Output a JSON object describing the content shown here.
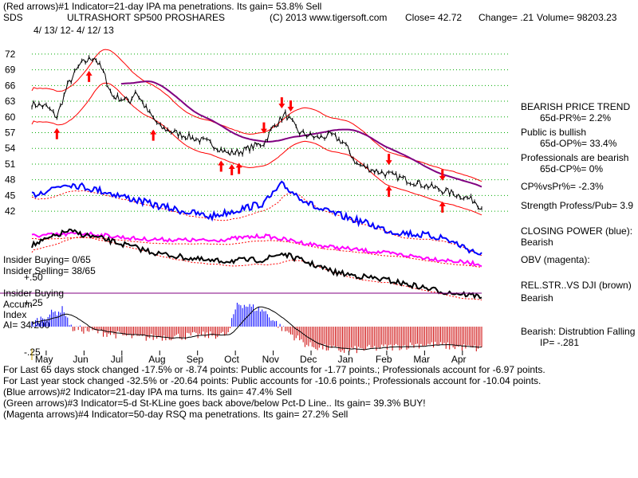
{
  "header": {
    "line1": "(Red arrows)#1 Indicator=21-day IPA ma penetrations. Its gain= 53.8% Sell",
    "symbol": "SDS",
    "name": "ULTRASHORT SP500 PROSHARES",
    "copyright": "(C) 2013 www.tigersoft.com",
    "close": "Close=  42.72",
    "change": "Change= .21",
    "volume": "Volume= 98203.23",
    "date_range": "4/ 13/ 12- 4/ 12/ 13"
  },
  "chart_data": {
    "type": "line",
    "title": "ULTRASHORT SP500 PROSHARES",
    "x_tick_labels": [
      "May",
      "Jun",
      "Jul",
      "Aug",
      "Sep",
      "Oct",
      "Nov",
      "Dec",
      "Jan",
      "Feb",
      "Mar",
      "Apr"
    ],
    "price_axis": {
      "ticks": [
        72,
        69,
        66,
        63,
        60,
        57,
        54,
        51,
        48,
        45,
        42
      ],
      "range": [
        40.5,
        73.5
      ]
    },
    "price_series_knots": {
      "x_index": [
        0,
        8,
        14,
        20,
        27,
        35,
        40,
        45,
        55,
        58,
        65,
        72,
        80,
        90,
        100,
        110,
        118,
        125,
        130,
        135,
        142,
        150,
        160,
        168,
        175,
        182,
        190,
        200,
        210,
        220,
        230,
        240,
        248,
        252
      ],
      "close": [
        62.5,
        62,
        60,
        66,
        70,
        71.5,
        68.5,
        64,
        63,
        65,
        61,
        58,
        57,
        56,
        55,
        53,
        53.5,
        54.5,
        55,
        58,
        60.5,
        57,
        56,
        56.5,
        55,
        51,
        50,
        49,
        48,
        47,
        46,
        45,
        44,
        42.7
      ]
    },
    "annotations": [
      "BEARISH PRICE TREND",
      "65d-PR%= 2.2%",
      "Public is bullish",
      "65d-OP%= 33.4%",
      "Professionals are bearish",
      "65d-CP%= 0%",
      "CP%vsPr%= -2.3%",
      "Strength Profess/Pub= 3.9",
      "CLOSING POWER (blue):",
      "Bearish",
      "OBV (magenta):",
      "REL.STR..VS DJI (brown)",
      "Bearish",
      "Bearish: Distrubtion Falling",
      "IP= -.281"
    ],
    "insider": [
      "Insider Buying= 0/65",
      "Insider Selling= 38/65"
    ],
    "accum_index": {
      "labels": [
        "Insider Buying",
        "Accum",
        "Index",
        "AI= 34/200"
      ],
      "y_ticks": [
        "+.50",
        "+.25",
        "-.25"
      ]
    }
  },
  "footer": [
    "For Last 65 days stock changed -17.5% or -8.74 points:  Public accounts for -1.77 points.;  Professionals account for -6.97 points.",
    "For Last year stock changed -32.5% or -20.64 points:  Public accounts for -10.6 points.;  Professionals account for -10.04 points.",
    "(Blue arrows)#2 Indicator=21-day IPA ma turns. Its gain= 47.4% Sell",
    "(Green arrows)#3 Indicator=5-d St-KLine goes back above/below Pct-D Line.. Its gain= 39.3% BUY!",
    "(Magenta arrows)#4 Indicator=50-day RSQ ma penetrations. Its gain= 27.2% Sell"
  ],
  "colors": {
    "price": "#000000",
    "band": "#ff0000",
    "ma": "#800080",
    "closing_power": "#0000ff",
    "obv": "#ff00ff",
    "rel_str": "#000000",
    "accum_pos": "#0000ff",
    "accum_neg": "#cc0000",
    "grid": "#00aa00",
    "buy_arrow": "#ff0000",
    "insider_line": "#800080"
  }
}
